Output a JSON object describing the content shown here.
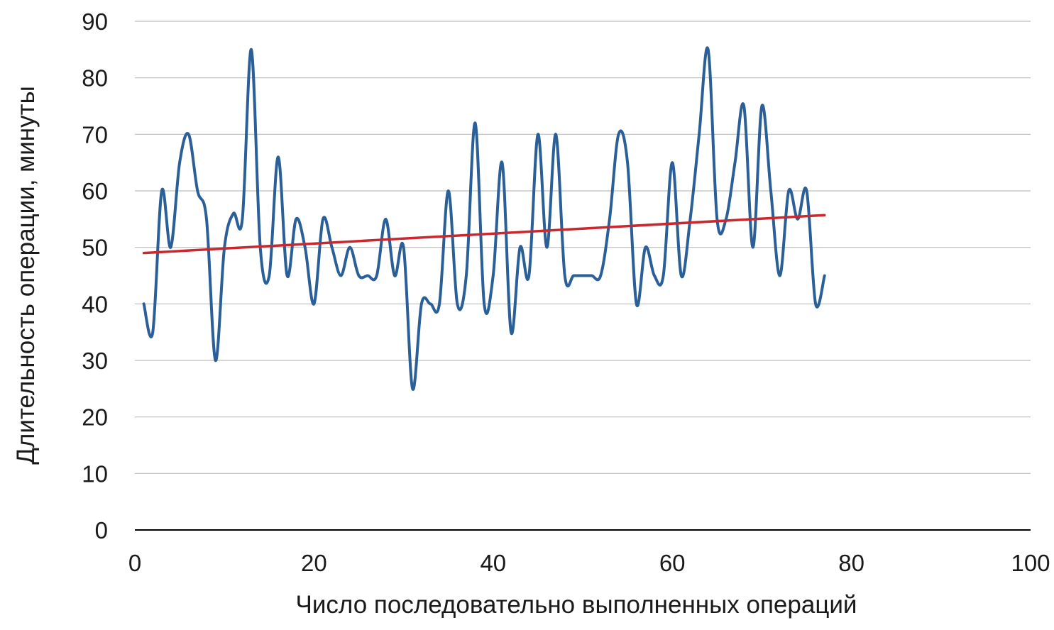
{
  "chart_data": {
    "type": "line",
    "title": "",
    "xlabel": "Число последовательно выполненных операций",
    "ylabel": "Длительность операции, минуты",
    "xlim": [
      0,
      100
    ],
    "ylim": [
      0,
      90
    ],
    "x_ticks": [
      "0",
      "20",
      "40",
      "60",
      "80",
      "100"
    ],
    "y_ticks": [
      "0",
      "10",
      "20",
      "30",
      "40",
      "50",
      "60",
      "70",
      "80",
      "90"
    ],
    "grid": "horizontal",
    "legend": "none",
    "colors": {
      "series": "#2a5f98",
      "trend": "#c8282e",
      "grid": "#bdbdbd",
      "axis": "#000000"
    },
    "series": [
      {
        "kind": "data",
        "x": [
          1,
          2,
          3,
          4,
          5,
          6,
          7,
          8,
          9,
          10,
          11,
          12,
          13,
          14,
          15,
          16,
          17,
          18,
          19,
          20,
          21,
          22,
          23,
          24,
          25,
          26,
          27,
          28,
          29,
          30,
          31,
          32,
          33,
          34,
          35,
          36,
          37,
          38,
          39,
          40,
          41,
          42,
          43,
          44,
          45,
          46,
          47,
          48,
          49,
          50,
          51,
          52,
          53,
          54,
          55,
          56,
          57,
          58,
          59,
          60,
          61,
          62,
          63,
          64,
          65,
          66,
          67,
          68,
          69,
          70,
          71,
          72,
          73,
          74,
          75,
          76,
          77
        ],
        "values": [
          40,
          35,
          60,
          50,
          65,
          70,
          60,
          55,
          30,
          50,
          56,
          55,
          85,
          50,
          45,
          66,
          45,
          55,
          50,
          40,
          55,
          50,
          45,
          50,
          45,
          45,
          45,
          55,
          45,
          50,
          25,
          40,
          40,
          40,
          60,
          40,
          45,
          72,
          40,
          45,
          65,
          35,
          50,
          45,
          70,
          50,
          70,
          45,
          45,
          45,
          45,
          45,
          55,
          70,
          65,
          40,
          50,
          45,
          45,
          65,
          45,
          55,
          70,
          85,
          55,
          55,
          65,
          75,
          50,
          75,
          60,
          45,
          60,
          55,
          60,
          40,
          45
        ]
      },
      {
        "kind": "trend",
        "x": [
          1,
          77
        ],
        "values": [
          49,
          55.7
        ]
      }
    ]
  }
}
